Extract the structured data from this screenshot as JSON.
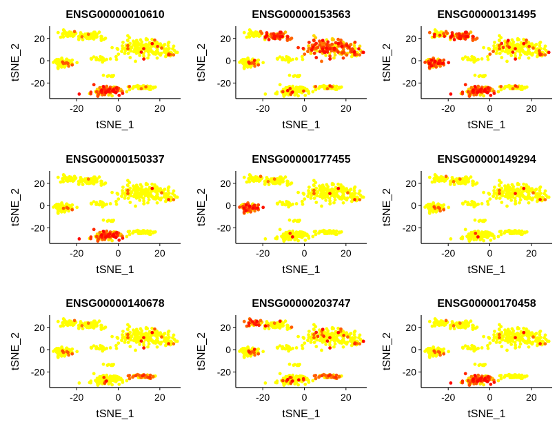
{
  "chart_data": {
    "type": "scatter",
    "layout": "3x3 facet grid",
    "xlabel": "tSNE_1",
    "ylabel": "tSNE_2",
    "xlim": [
      -33,
      30
    ],
    "ylim": [
      -34,
      31
    ],
    "xticks": [
      -20,
      0,
      20
    ],
    "yticks": [
      -20,
      0,
      20
    ],
    "color_scale": {
      "low": "#ffff00",
      "high": "#ff0000"
    },
    "legend": "none",
    "cell_clusters": [
      {
        "id": "left-arm-top",
        "center": [
          -14,
          22
        ],
        "spread": [
          6.5,
          3.2
        ],
        "count": 60
      },
      {
        "id": "left-arm-upper-left",
        "center": [
          -24,
          24
        ],
        "spread": [
          3.5,
          2.5
        ],
        "count": 30
      },
      {
        "id": "big-right",
        "center": [
          12,
          12
        ],
        "spread": [
          11,
          7
        ],
        "count": 190
      },
      {
        "id": "right-tip",
        "center": [
          24,
          6
        ],
        "spread": [
          3,
          3.5
        ],
        "count": 25
      },
      {
        "id": "left-blob",
        "center": [
          -26,
          -2
        ],
        "spread": [
          4.5,
          3
        ],
        "count": 70
      },
      {
        "id": "mid-band",
        "center": [
          -8,
          2
        ],
        "spread": [
          6,
          2.5
        ],
        "count": 25
      },
      {
        "id": "bottom-left",
        "center": [
          -6,
          -27
        ],
        "spread": [
          7,
          3.5
        ],
        "count": 110
      },
      {
        "id": "bottom-right",
        "center": [
          12,
          -24
        ],
        "spread": [
          5,
          2
        ],
        "count": 45
      },
      {
        "id": "scatter-small",
        "center": [
          -4,
          -14
        ],
        "spread": [
          3,
          2
        ],
        "count": 8
      }
    ],
    "panels": [
      {
        "title": "ENSG00000010610",
        "high_clusters": [
          "bottom-left"
        ],
        "base_fraction": 0.04
      },
      {
        "title": "ENSG00000153563",
        "high_clusters": [
          "left-arm-top",
          "big-right"
        ],
        "base_fraction": 0.06
      },
      {
        "title": "ENSG00000131495",
        "high_clusters": [
          "bottom-left",
          "left-blob",
          "left-arm-top"
        ],
        "base_fraction": 0.12
      },
      {
        "title": "ENSG00000150337",
        "high_clusters": [
          "bottom-left"
        ],
        "base_fraction": 0.01
      },
      {
        "title": "ENSG00000177455",
        "high_clusters": [
          "left-blob"
        ],
        "base_fraction": 0.02
      },
      {
        "title": "ENSG00000149294",
        "high_clusters": [],
        "base_fraction": 0.02
      },
      {
        "title": "ENSG00000140678",
        "high_clusters": [
          "bottom-right"
        ],
        "base_fraction": 0.03
      },
      {
        "title": "ENSG00000203747",
        "high_clusters": [
          "left-arm-upper-left",
          "bottom-right"
        ],
        "base_fraction": 0.08
      },
      {
        "title": "ENSG00000170458",
        "high_clusters": [
          "bottom-left"
        ],
        "base_fraction": 0.02
      }
    ]
  }
}
